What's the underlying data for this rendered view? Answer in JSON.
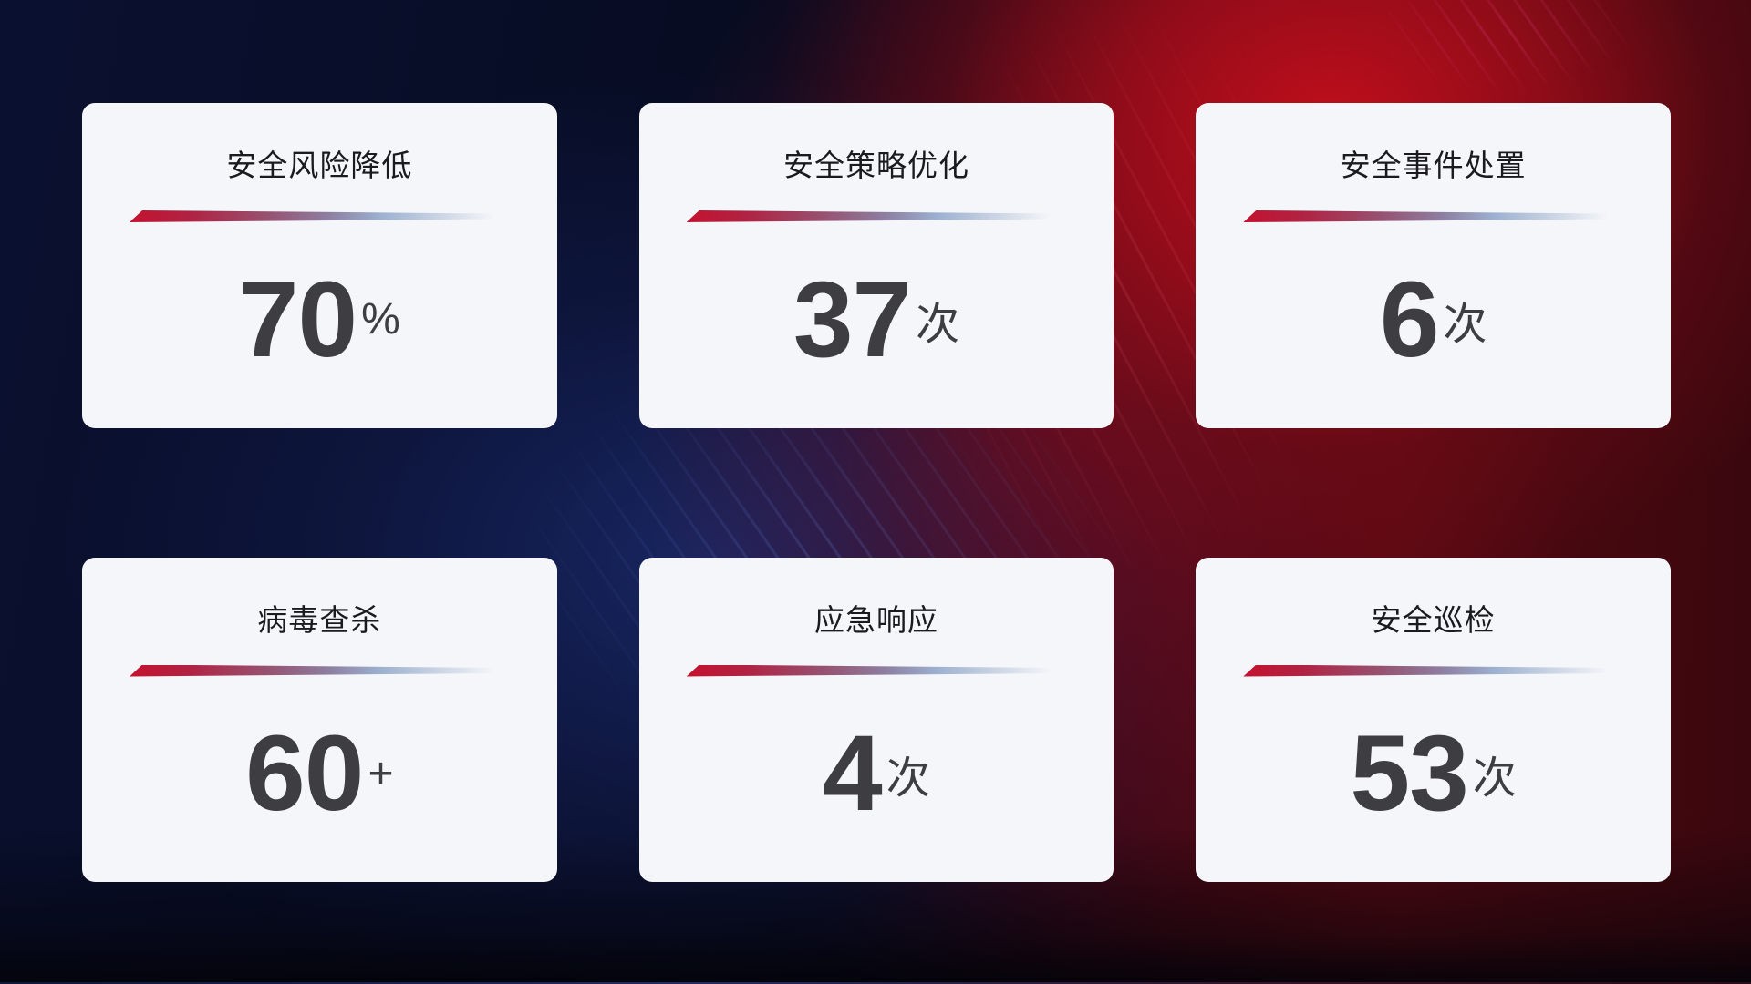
{
  "theme": {
    "card_background": "#f5f6fa",
    "title_color": "#1b1b1f",
    "value_color": "#3d3d42",
    "divider_gradient_start": "#c41230",
    "divider_gradient_mid": "#8d7da0",
    "divider_gradient_end": "#c6d1e2",
    "background_navy": "#0a1030",
    "background_blue_glow": "#1b2b6e",
    "background_red_glow": "#c60e1c",
    "background_dark_red": "#3a070e"
  },
  "cards": [
    {
      "title": "安全风险降低",
      "value": "70",
      "unit": "%"
    },
    {
      "title": "安全策略优化",
      "value": "37",
      "unit": "次"
    },
    {
      "title": "安全事件处置",
      "value": "6",
      "unit": "次"
    },
    {
      "title": "病毒查杀",
      "value": "60",
      "unit": "+"
    },
    {
      "title": "应急响应",
      "value": "4",
      "unit": "次"
    },
    {
      "title": "安全巡检",
      "value": "53",
      "unit": "次"
    }
  ]
}
